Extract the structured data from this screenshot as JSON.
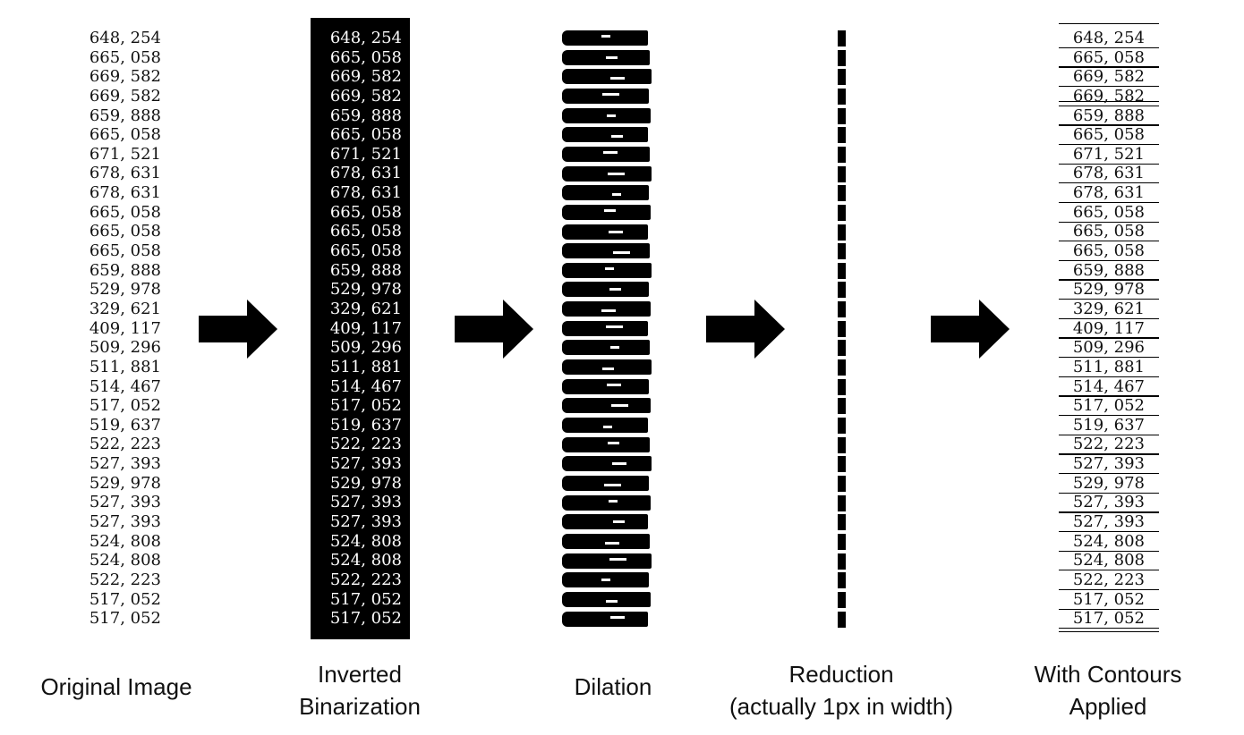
{
  "values": [
    "648, 254",
    "665, 058",
    "669, 582",
    "669, 582",
    "659, 888",
    "665, 058",
    "671, 521",
    "678, 631",
    "678, 631",
    "665, 058",
    "665, 058",
    "665, 058",
    "659, 888",
    "529, 978",
    "329, 621",
    "409, 117",
    "509, 296",
    "511, 881",
    "514, 467",
    "517, 052",
    "519, 637",
    "522, 223",
    "527, 393",
    "529, 978",
    "527, 393",
    "527, 393",
    "524, 808",
    "524, 808",
    "522, 223",
    "517, 052",
    "517, 052"
  ],
  "stages": [
    {
      "id": "original",
      "caption": [
        "Original Image"
      ]
    },
    {
      "id": "inverted",
      "caption": [
        "Inverted",
        "Binarization"
      ]
    },
    {
      "id": "dilation",
      "caption": [
        "Dilation"
      ]
    },
    {
      "id": "reduction",
      "caption": [
        "Reduction",
        "(actually 1px in width)"
      ]
    },
    {
      "id": "contours",
      "caption": [
        "With Contours",
        "Applied"
      ]
    }
  ],
  "colors": {
    "ink": "#000000",
    "paper": "#ffffff"
  },
  "icons": {
    "arrow": "right-arrow-icon"
  }
}
